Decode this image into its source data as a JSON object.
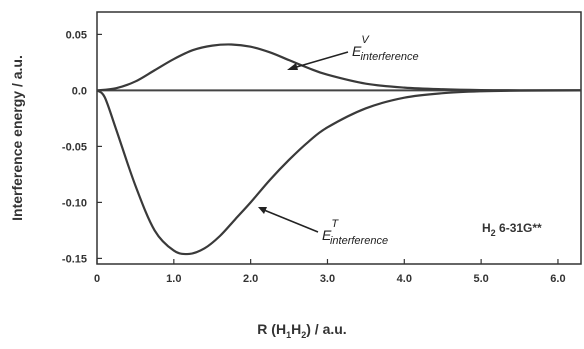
{
  "chart_data": {
    "type": "line",
    "title": "",
    "xlabel_main": "R (H",
    "xlabel_sub1": "1",
    "xlabel_mid": "H",
    "xlabel_sub2": "2",
    "xlabel_tail": ") / a.u.",
    "ylabel": "Interference energy / a.u.",
    "xlim": [
      0,
      6.3
    ],
    "ylim": [
      -0.155,
      0.07
    ],
    "x_ticks": [
      0,
      1.0,
      2.0,
      3.0,
      4.0,
      5.0,
      6.0
    ],
    "x_tick_labels": [
      "0",
      "1.0",
      "2.0",
      "3.0",
      "4.0",
      "5.0",
      "6.0"
    ],
    "y_ticks": [
      0.05,
      0.0,
      -0.05,
      -0.1,
      -0.15
    ],
    "y_tick_labels": [
      "0.05",
      "0.0",
      "-0.05",
      "-0.10",
      "-0.15"
    ],
    "grid": false,
    "system_label_main": "H",
    "system_label_sub": "2",
    "system_label_tail": " 6-31G**",
    "series": [
      {
        "annotation_main": "E",
        "annotation_sup": "V",
        "annotation_sub": "interference",
        "x": [
          0,
          0.25,
          0.5,
          0.75,
          1.0,
          1.25,
          1.5,
          1.75,
          2.0,
          2.25,
          2.5,
          2.75,
          3.0,
          3.5,
          4.0,
          4.5,
          5.0,
          5.5,
          6.3
        ],
        "y": [
          0,
          0.002,
          0.008,
          0.018,
          0.028,
          0.036,
          0.04,
          0.041,
          0.039,
          0.034,
          0.027,
          0.02,
          0.014,
          0.006,
          0.0025,
          0.001,
          0.0003,
          0.0001,
          0.0
        ]
      },
      {
        "annotation_main": "E",
        "annotation_sup": "T",
        "annotation_sub": "interference",
        "x": [
          0,
          0.1,
          0.25,
          0.5,
          0.75,
          1.0,
          1.2,
          1.4,
          1.6,
          1.8,
          2.0,
          2.25,
          2.5,
          2.75,
          3.0,
          3.5,
          4.0,
          4.5,
          5.0,
          5.5,
          6.3
        ],
        "y": [
          0,
          -0.006,
          -0.035,
          -0.085,
          -0.125,
          -0.143,
          -0.146,
          -0.141,
          -0.13,
          -0.115,
          -0.1,
          -0.08,
          -0.062,
          -0.046,
          -0.033,
          -0.016,
          -0.0065,
          -0.0025,
          -0.0008,
          -0.0002,
          0.0
        ]
      }
    ]
  }
}
